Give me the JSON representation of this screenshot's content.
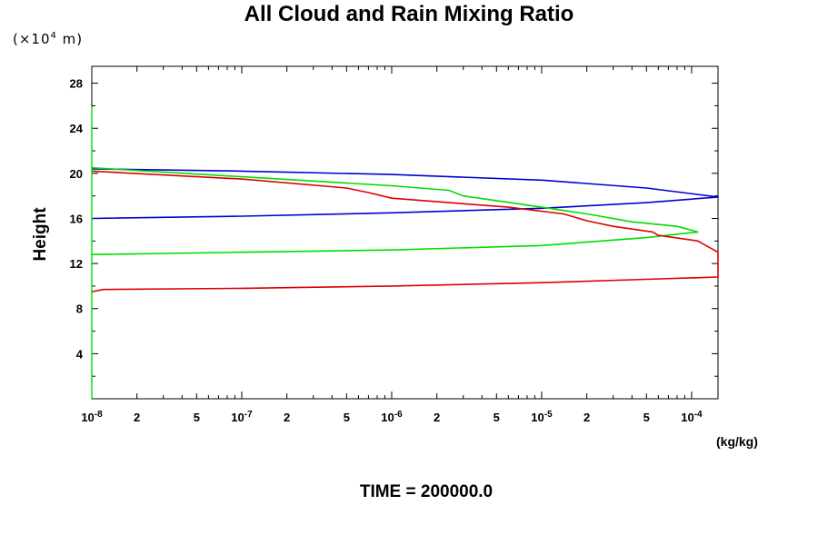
{
  "chart_data": {
    "type": "line",
    "title": "All Cloud and Rain Mixing Ratio",
    "ylabel": "Height",
    "y_unit_prefix": "(×10",
    "y_unit_exp": "4",
    "y_unit_suffix": " m)",
    "xlabel": "(kg/kg)",
    "x_scale": "log",
    "xlim": [
      1e-08,
      0.00015
    ],
    "ylim": [
      0,
      29.5
    ],
    "y_ticks": [
      4,
      8,
      12,
      16,
      20,
      24,
      28
    ],
    "x_ticks": [
      {
        "value": 1e-08,
        "base": "10",
        "exp": "-8"
      },
      {
        "value": 2e-08,
        "base": "2",
        "exp": ""
      },
      {
        "value": 5e-08,
        "base": "5",
        "exp": ""
      },
      {
        "value": 1e-07,
        "base": "10",
        "exp": "-7"
      },
      {
        "value": 2e-07,
        "base": "2",
        "exp": ""
      },
      {
        "value": 5e-07,
        "base": "5",
        "exp": ""
      },
      {
        "value": 1e-06,
        "base": "10",
        "exp": "-6"
      },
      {
        "value": 2e-06,
        "base": "2",
        "exp": ""
      },
      {
        "value": 5e-06,
        "base": "5",
        "exp": ""
      },
      {
        "value": 1e-05,
        "base": "10",
        "exp": "-5"
      },
      {
        "value": 2e-05,
        "base": "2",
        "exp": ""
      },
      {
        "value": 5e-05,
        "base": "5",
        "exp": ""
      },
      {
        "value": 0.0001,
        "base": "10",
        "exp": "-4"
      }
    ],
    "series": [
      {
        "color": "#0000cc",
        "points": [
          [
            1e-08,
            16.0
          ],
          [
            1e-07,
            16.2
          ],
          [
            1e-06,
            16.5
          ],
          [
            1e-05,
            16.9
          ],
          [
            5e-05,
            17.4
          ],
          [
            0.00015,
            17.9
          ],
          [
            5e-05,
            18.7
          ],
          [
            1e-05,
            19.4
          ],
          [
            1e-06,
            19.9
          ],
          [
            1e-07,
            20.2
          ],
          [
            1e-08,
            20.4
          ]
        ]
      },
      {
        "color": "#00dd00",
        "points": [
          [
            1e-08,
            12.8
          ],
          [
            1e-07,
            13.0
          ],
          [
            1e-06,
            13.2
          ],
          [
            1e-05,
            13.6
          ],
          [
            5e-05,
            14.3
          ],
          [
            0.00011,
            14.8
          ],
          [
            8e-05,
            15.3
          ],
          [
            4e-05,
            15.7
          ],
          [
            2e-05,
            16.4
          ],
          [
            1e-05,
            17.0
          ],
          [
            3e-06,
            18.0
          ],
          [
            2.4e-06,
            18.5
          ],
          [
            1e-06,
            18.9
          ],
          [
            1e-07,
            19.7
          ],
          [
            1e-08,
            20.5
          ]
        ]
      },
      {
        "color": "#dd0000",
        "points": [
          [
            1e-08,
            9.5
          ],
          [
            1.2e-08,
            9.7
          ],
          [
            1e-07,
            9.8
          ],
          [
            1e-06,
            10.0
          ],
          [
            1e-05,
            10.3
          ],
          [
            5e-05,
            10.6
          ],
          [
            0.00015,
            10.8
          ],
          [
            0.00015,
            13.0
          ],
          [
            0.00011,
            14.0
          ],
          [
            6e-05,
            14.5
          ],
          [
            5.5e-05,
            14.8
          ],
          [
            3e-05,
            15.3
          ],
          [
            2e-05,
            15.8
          ],
          [
            1.4e-05,
            16.4
          ],
          [
            6e-06,
            17.0
          ],
          [
            1e-06,
            17.8
          ],
          [
            7e-07,
            18.3
          ],
          [
            5e-07,
            18.7
          ],
          [
            1e-07,
            19.5
          ],
          [
            1e-08,
            20.2
          ]
        ]
      }
    ]
  },
  "footer": {
    "time_label": "TIME = 200000.0"
  }
}
